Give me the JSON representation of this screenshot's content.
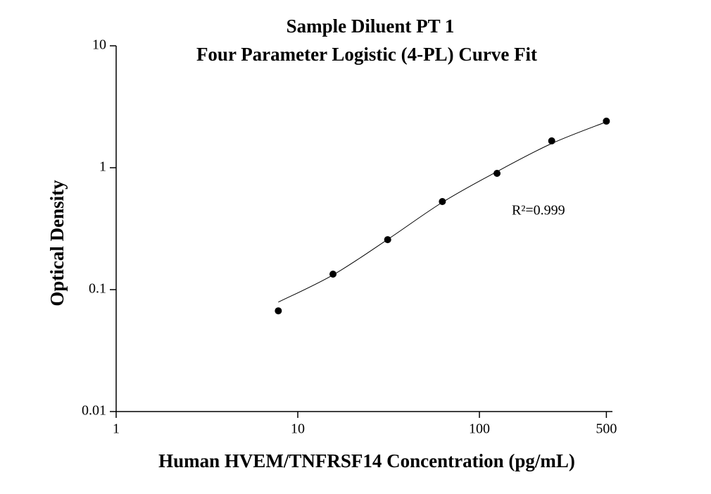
{
  "chart_data": {
    "type": "scatter",
    "title": "Sample Diluent PT 1",
    "subtitle": "Four Parameter Logistic (4-PL) Curve Fit",
    "x_label": "Human HVEM/TNFRSF14 Concentration (pg/mL)",
    "y_label": "Optical Density",
    "annotation": "R²=0.999",
    "x_log": true,
    "y_log": true,
    "xlim": [
      1,
      540
    ],
    "ylim": [
      0.01,
      10
    ],
    "xticks": [
      1,
      10,
      100,
      500
    ],
    "yticks": [
      0.01,
      0.1,
      1,
      10
    ],
    "color": "#000000",
    "x": [
      7.8125,
      15.625,
      31.25,
      62.5,
      125,
      250,
      500
    ],
    "values": [
      0.067,
      0.134,
      0.257,
      0.528,
      0.899,
      1.66,
      2.41
    ],
    "fit": {
      "x": [
        7.8125,
        15.625,
        31.25,
        62.5,
        125,
        250,
        500
      ],
      "values": [
        0.079,
        0.132,
        0.258,
        0.52,
        0.93,
        1.58,
        2.38
      ]
    }
  }
}
